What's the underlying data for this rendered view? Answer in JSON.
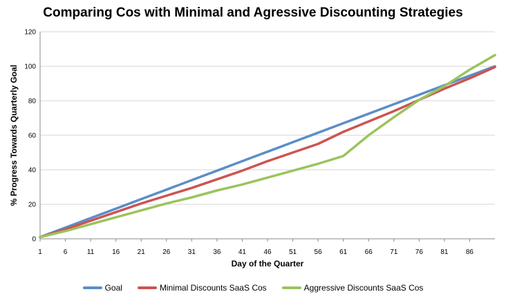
{
  "chart_data": {
    "type": "line",
    "title": "Comparing Cos with Minimal and Agressive Discounting Strategies",
    "xlabel": "Day of the Quarter",
    "ylabel": "% Progress Towards Quarterly Goal",
    "xlim": [
      1,
      91
    ],
    "ylim": [
      0,
      120
    ],
    "x_ticks": [
      1,
      6,
      11,
      16,
      21,
      26,
      31,
      36,
      41,
      46,
      51,
      56,
      61,
      66,
      71,
      76,
      81,
      86
    ],
    "y_ticks": [
      0,
      20,
      40,
      60,
      80,
      100,
      120
    ],
    "grid": "horizontal",
    "legend_position": "bottom",
    "x": [
      1,
      6,
      11,
      16,
      21,
      26,
      31,
      36,
      41,
      46,
      51,
      56,
      61,
      66,
      71,
      76,
      81,
      86,
      91
    ],
    "series": [
      {
        "name": "Goal",
        "color": "#5b8ec7",
        "values": [
          1,
          6.5,
          12,
          17.5,
          23,
          28.5,
          34,
          39.5,
          45,
          50.5,
          56,
          61.5,
          67,
          72.5,
          78,
          83.5,
          89,
          94.5,
          100
        ]
      },
      {
        "name": "Minimal Discounts SaaS Cos",
        "color": "#cc5451",
        "values": [
          1,
          5.5,
          10.5,
          15.5,
          20.5,
          25,
          29.5,
          34.5,
          39.5,
          45,
          50,
          55,
          62,
          68,
          74,
          80.5,
          87,
          93,
          99.5
        ]
      },
      {
        "name": "Aggressive Discounts SaaS Cos",
        "color": "#9bc35c",
        "values": [
          1,
          4.5,
          8.5,
          12.5,
          16.5,
          20.5,
          24,
          28,
          31.5,
          35.5,
          39.5,
          43.5,
          48,
          60,
          70.5,
          80.5,
          88.5,
          98,
          106.5
        ]
      }
    ]
  }
}
